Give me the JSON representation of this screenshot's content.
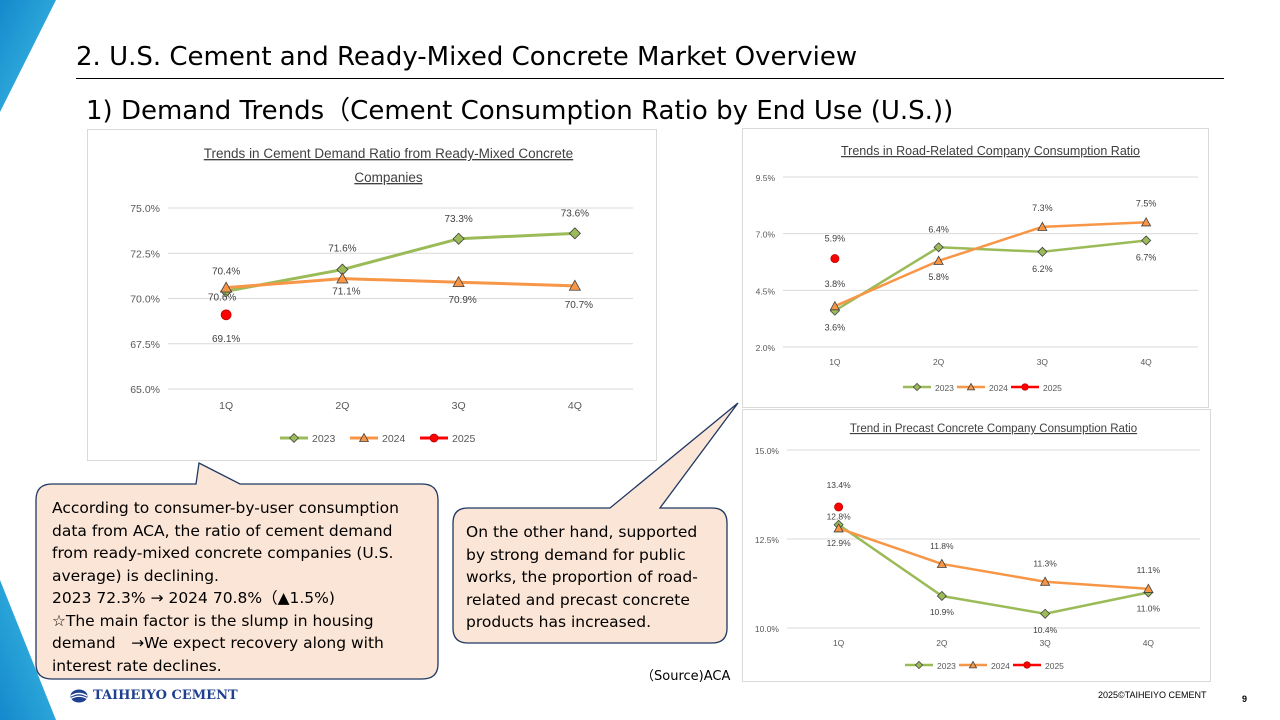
{
  "header": {
    "title": "2. U.S. Cement and Ready-Mixed Concrete Market Overview",
    "subtitle": "1) Demand Trends（Cement Consumption Ratio by End Use (U.S.))"
  },
  "chart_data": [
    {
      "id": "ready_mixed",
      "type": "line",
      "title": "Trends in Cement Demand Ratio from Ready-Mixed Concrete Companies",
      "title_lines": [
        "Trends in Cement Demand Ratio from Ready-Mixed Concrete",
        "Companies"
      ],
      "categories": [
        "1Q",
        "2Q",
        "3Q",
        "4Q"
      ],
      "ylim": [
        65.0,
        75.0
      ],
      "yticks": [
        "65.0%",
        "67.5%",
        "70.0%",
        "72.5%",
        "75.0%"
      ],
      "series": [
        {
          "name": "2023",
          "color": "#9bbb59",
          "marker": "diamond",
          "values": [
            70.4,
            71.6,
            73.3,
            73.6
          ],
          "labels": [
            "70.4%",
            "71.6%",
            "73.3%",
            "73.6%"
          ]
        },
        {
          "name": "2024",
          "color": "#f79646",
          "marker": "triangle",
          "values": [
            70.6,
            71.1,
            70.9,
            70.7
          ],
          "labels": [
            "70.6%",
            "71.1%",
            "70.9%",
            "70.7%"
          ]
        },
        {
          "name": "2025",
          "color": "#ff0000",
          "marker": "circle",
          "values": [
            69.1,
            null,
            null,
            null
          ],
          "labels": [
            "69.1%",
            null,
            null,
            null
          ]
        }
      ],
      "legend": "bottom"
    },
    {
      "id": "road",
      "type": "line",
      "title": "Trends in Road-Related Company Consumption Ratio",
      "title_lines": [
        "Trends in Road-Related Company Consumption Ratio"
      ],
      "categories": [
        "1Q",
        "2Q",
        "3Q",
        "4Q"
      ],
      "ylim": [
        2.0,
        9.5
      ],
      "yticks": [
        "2.0%",
        "4.5%",
        "7.0%",
        "9.5%"
      ],
      "series": [
        {
          "name": "2023",
          "color": "#9bbb59",
          "marker": "diamond",
          "values": [
            3.6,
            6.4,
            6.2,
            6.7
          ],
          "labels": [
            "3.6%",
            "6.4%",
            "6.2%",
            "6.7%"
          ]
        },
        {
          "name": "2024",
          "color": "#f79646",
          "marker": "triangle",
          "values": [
            3.8,
            5.8,
            7.3,
            7.5
          ],
          "labels": [
            "3.8%",
            "5.8%",
            "7.3%",
            "7.5%"
          ]
        },
        {
          "name": "2025",
          "color": "#ff0000",
          "marker": "circle",
          "values": [
            5.9,
            null,
            null,
            null
          ],
          "labels": [
            "5.9%",
            null,
            null,
            null
          ]
        }
      ],
      "legend": "bottom"
    },
    {
      "id": "precast",
      "type": "line",
      "title": "Trend in Precast Concrete Company Consumption Ratio",
      "title_lines": [
        "Trend in Precast Concrete Company Consumption Ratio"
      ],
      "categories": [
        "1Q",
        "2Q",
        "3Q",
        "4Q"
      ],
      "ylim": [
        10.0,
        15.0
      ],
      "yticks": [
        "10.0%",
        "12.5%",
        "15.0%"
      ],
      "series": [
        {
          "name": "2023",
          "color": "#9bbb59",
          "marker": "diamond",
          "values": [
            12.9,
            10.9,
            10.4,
            11.0
          ],
          "labels": [
            "12.9%",
            "10.9%",
            "10.4%",
            "11.0%"
          ]
        },
        {
          "name": "2024",
          "color": "#f79646",
          "marker": "triangle",
          "values": [
            12.8,
            11.8,
            11.3,
            11.1
          ],
          "labels": [
            "12.8%",
            "11.8%",
            "11.3%",
            "11.1%"
          ]
        },
        {
          "name": "2025",
          "color": "#ff0000",
          "marker": "circle",
          "values": [
            13.4,
            null,
            null,
            null
          ],
          "labels": [
            "13.4%",
            null,
            null,
            null
          ]
        }
      ],
      "legend": "bottom"
    }
  ],
  "callout_left": {
    "lines": [
      "According to consumer-by-user consumption",
      "data from ACA, the ratio of cement demand",
      "from ready-mixed concrete companies (U.S.",
      "average) is declining.",
      "2023 72.3% → 2024 70.8%（▲1.5%)",
      "☆The main factor is the slump in housing",
      "demand　→We expect recovery along with",
      "interest rate declines."
    ]
  },
  "callout_right": {
    "lines": [
      "On the other hand, supported",
      "by strong demand for public",
      "works, the proportion of road-",
      "related and precast concrete",
      "products has increased."
    ]
  },
  "footer": {
    "source": "（Source)ACA",
    "logo_text": "TAIHEIYO CEMENT",
    "copyright": "2025©TAIHEIYO CEMENT",
    "page_number": "9"
  },
  "colors": {
    "accent_blue": "#1b8fd1",
    "accent_cyan": "#39b7e0",
    "callout_fill": "#fbe5d6",
    "callout_stroke": "#1f3864"
  }
}
